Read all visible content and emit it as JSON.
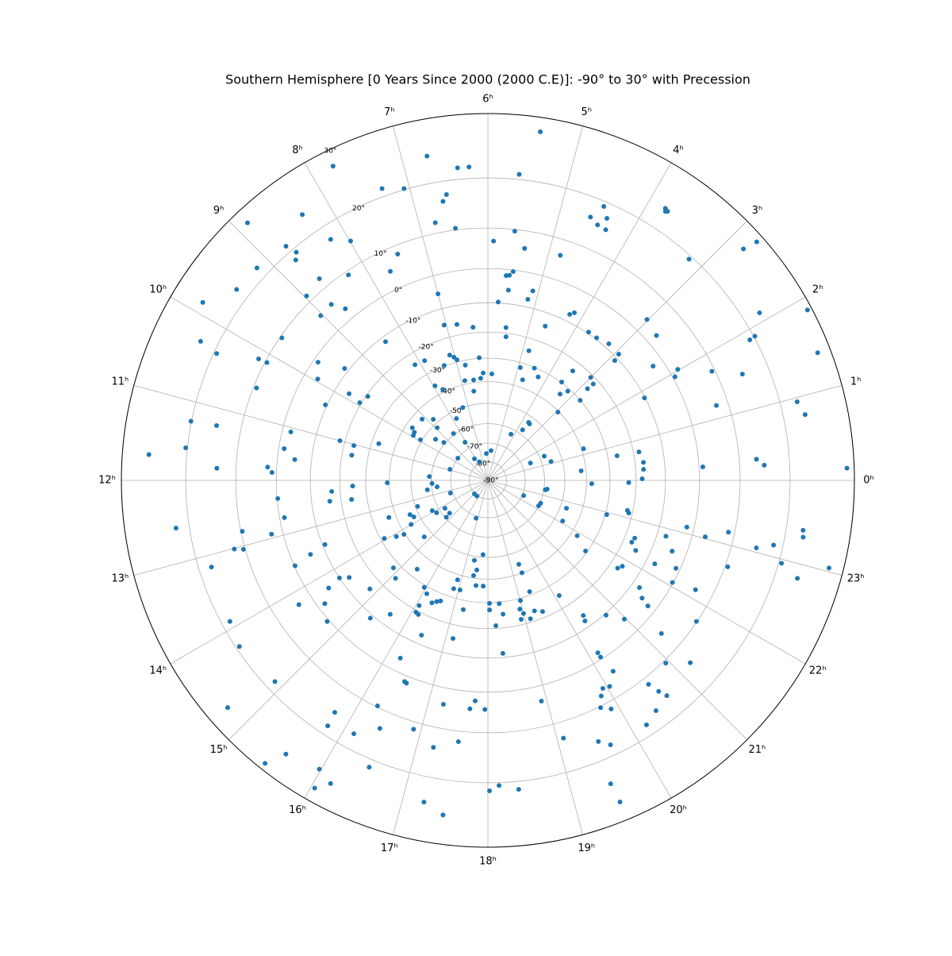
{
  "chart_data": {
    "type": "polar-scatter",
    "title": "Southern Hemisphere [0 Years Since 2000 (2000 C.E)]: -90° to 30° with Precession",
    "color": "#1f77b4",
    "grid": true,
    "xlim": [
      0,
      24
    ],
    "xticks": [
      {
        "value": 0,
        "label": "0ʰ"
      },
      {
        "value": 1,
        "label": "1ʰ"
      },
      {
        "value": 2,
        "label": "2ʰ"
      },
      {
        "value": 3,
        "label": "3ʰ"
      },
      {
        "value": 4,
        "label": "4ʰ"
      },
      {
        "value": 5,
        "label": "5ʰ"
      },
      {
        "value": 6,
        "label": "6ʰ"
      },
      {
        "value": 7,
        "label": "7ʰ"
      },
      {
        "value": 8,
        "label": "8ʰ"
      },
      {
        "value": 9,
        "label": "9ʰ"
      },
      {
        "value": 10,
        "label": "10ʰ"
      },
      {
        "value": 11,
        "label": "11ʰ"
      },
      {
        "value": 12,
        "label": "12ʰ"
      },
      {
        "value": 13,
        "label": "13ʰ"
      },
      {
        "value": 14,
        "label": "14ʰ"
      },
      {
        "value": 15,
        "label": "15ʰ"
      },
      {
        "value": 16,
        "label": "16ʰ"
      },
      {
        "value": 17,
        "label": "17ʰ"
      },
      {
        "value": 18,
        "label": "18ʰ"
      },
      {
        "value": 19,
        "label": "19ʰ"
      },
      {
        "value": 20,
        "label": "20ʰ"
      },
      {
        "value": 21,
        "label": "21ʰ"
      },
      {
        "value": 22,
        "label": "22ʰ"
      },
      {
        "value": 23,
        "label": "23ʰ"
      }
    ],
    "ylim": [
      -90,
      30
    ],
    "yticks": [
      {
        "value": -90,
        "label": "-90°"
      },
      {
        "value": -80,
        "label": "-80°"
      },
      {
        "value": -70,
        "label": "-70°"
      },
      {
        "value": -60,
        "label": "-60°"
      },
      {
        "value": -50,
        "label": "-50°"
      },
      {
        "value": -40,
        "label": "-40°"
      },
      {
        "value": -30,
        "label": "-30°"
      },
      {
        "value": -20,
        "label": "-20°"
      },
      {
        "value": -10,
        "label": "-10°"
      },
      {
        "value": 0,
        "label": "0°"
      },
      {
        "value": 10,
        "label": "10°"
      },
      {
        "value": 20,
        "label": "20°"
      },
      {
        "value": 30,
        "label": "30°"
      }
    ],
    "x": [
      5.43,
      6.71,
      6.37,
      6.23,
      7.75,
      7.33,
      7.07,
      5.61,
      6.55,
      6.61,
      6.77,
      6.49,
      8.87,
      8.33,
      8.72,
      8.67,
      8.74,
      8.21,
      7.99,
      7.45,
      7.67,
      8.28,
      8.66,
      9.16,
      9.87,
      9.52,
      8.97,
      8.78,
      8.65,
      9.03,
      7.0,
      5.91,
      5.59,
      5.4,
      5.66,
      5.6,
      5.54,
      5.78,
      5.59,
      5.17,
      5.11,
      4.81,
      4.58,
      4.45,
      4.37,
      4.32,
      4.47,
      3.79,
      3.75,
      3.77,
      3.18,
      2.81,
      2.77,
      2.11,
      1.87,
      1.88,
      1.89,
      1.41,
      1.51,
      1.73,
      1.21,
      0.95,
      0.78,
      0.3,
      0.21,
      0.13,
      0.24,
      2.71,
      3.02,
      2.02,
      1.93,
      2.31,
      1.85,
      2.93,
      2.89,
      3.23,
      3.51,
      3.72,
      4.25,
      4.18,
      4.64,
      4.83,
      3,
      2.83,
      2.84,
      2.73,
      3.48,
      3.34,
      2.95,
      3.54,
      3.21,
      4.5,
      4.27,
      4.93,
      4.73,
      3.66,
      5.86,
      6.17,
      6.27,
      6.54,
      6.87,
      6.6,
      5.55,
      5.52,
      7.05,
      6.75,
      6.37,
      7.13,
      7.03,
      6.96,
      7.39,
      6.74,
      7.86,
      8.15,
      7.95,
      7.76,
      8.43,
      9.47,
      9.87,
      9.92,
      9.67,
      9.68,
      9.95,
      10.34,
      9.69,
      10.13,
      10.14,
      10.55,
      10.33,
      10.28,
      11.25,
      11.59,
      11.24,
      11.83,
      11.71,
      11.08,
      11.41,
      11.59,
      11.77,
      11.86,
      11,
      11.03,
      11.3,
      10.76,
      9.68,
      9.79,
      9.93,
      9.93,
      9.46,
      9.29,
      9.14,
      8.79,
      8.42,
      9.57,
      8.07,
      10.91,
      7.64,
      6.22,
      5.6,
      8.13,
      4.23,
      3.7,
      3.57,
      1.55,
      1.11,
      23.38,
      23.44,
      22.44,
      1.48,
      22.47,
      22.23,
      0.39,
      23.88,
      1.22,
      0.72,
      23.94,
      0.04,
      0.27,
      0.44,
      0.71,
      22.7,
      22.1,
      21.88,
      21.61,
      22.93,
      23.19,
      23.13,
      22.57,
      22.45,
      22.31,
      21.73,
      21.83,
      22.84,
      22.6,
      22.23,
      22.33,
      22.07,
      21.65,
      21.51,
      20.97,
      21.46,
      22.15,
      23.12,
      23.03,
      23.19,
      22.68,
      23.06,
      23.15,
      22.95,
      23.4,
      23.32,
      23.04,
      22.83,
      21.73,
      21.2,
      20.95,
      21.24,
      20.65,
      20.6,
      20.55,
      20.41,
      20.2,
      20.22,
      19.93,
      19.85,
      19.76,
      20.04,
      20.17,
      20.17,
      19.89,
      19.53,
      19.66,
      19.47,
      19.49,
      19.09,
      18.91,
      20.35,
      20.31,
      20.75,
      20.12,
      19.51,
      19.31,
      19.14,
      19,
      19.35,
      19.35,
      19.37,
      19.01,
      18.93,
      18.9,
      18.43,
      18.35,
      18.05,
      18.05,
      18.21,
      18.33,
      17.57,
      17.83,
      17.43,
      17.53,
      16.87,
      17.05,
      16.83,
      17.28,
      17.17,
      17.75,
      17.36,
      16.84,
      18.38,
      18.14,
      18.02,
      17.95,
      17.78,
      17.7,
      17.25,
      17.57,
      17.23,
      17.49,
      17.25,
      16.89,
      16.25,
      16.5,
      16.54,
      16.26,
      16.43,
      16.14,
      16.5,
      15.79,
      15.77,
      16.17,
      15.98,
      16.04,
      15.57,
      15.45,
      14.89,
      14.74,
      14.25,
      13.91,
      14.75,
      14.47,
      14.27,
      14.22,
      13.59,
      13.51,
      13.43,
      14.22,
      14.33,
      14.84,
      15.3,
      15.59,
      14.85,
      15.11,
      15.43,
      16.09,
      16.17,
      16.08,
      16.45,
      15.95,
      16.11,
      16.36,
      16.47,
      16.57,
      13.75,
      13.99,
      14.18,
      13.37,
      13.95,
      14.1,
      14.15,
      13.9,
      14.2,
      14.7,
      14.77,
      13.25,
      15,
      15.67,
      14.77,
      11.75,
      12.21,
      12.48,
      12.59,
      13.35,
      13.58,
      12.16,
      12.53,
      12.27,
      12.5,
      12.09,
      12.33,
      12.69,
      12.93,
      12.78,
      13.01,
      13.05,
      12.58,
      13.16,
      8.93,
      7.8,
      7.27,
      6.27
    ],
    "values": [
      28,
      24.6,
      22,
      22,
      27.7,
      21.4,
      20.2,
      20.9,
      17.5,
      16.3,
      12.3,
      10.4,
      28,
      23.7,
      21.2,
      19.2,
      18.2,
      17.3,
      15,
      8,
      4.9,
      9.1,
      12.3,
      22,
      25.6,
      22.3,
      11.4,
      6.1,
      3,
      5.9,
      -5.3,
      7,
      9.6,
      5.9,
      -1.7,
      -1.5,
      -0.4,
      -9.7,
      -5.8,
      -7.6,
      -4.8,
      6.3,
      16.3,
      15.4,
      17.3,
      15.2,
      19.1,
      23.8,
      23.6,
      23.4,
      19.4,
      26.9,
      29,
      22.9,
      29.4,
      19.1,
      20.2,
      28.2,
      15,
      9.3,
      7.3,
      22.9,
      23.7,
      13.7,
      15.2,
      29,
      1,
      2.8,
      3.8,
      2.2,
      0.6,
      -3,
      -10.2,
      -8.7,
      -11,
      -8.5,
      -9.5,
      -9.5,
      -7.7,
      -6.6,
      -14.3,
      -24.6,
      -21,
      -22,
      -24.8,
      -30,
      -23.6,
      -34,
      -40.4,
      -29.7,
      -31,
      -30.3,
      -33,
      -32,
      -36.6,
      -53,
      -36.6,
      -36.2,
      -38.4,
      -38.8,
      -38.4,
      -43.8,
      -18,
      -21.3,
      -15.4,
      -16.2,
      -18,
      -26.5,
      -27.8,
      -29.1,
      -29.7,
      -32,
      -24.8,
      -24.3,
      -35.8,
      -38.8,
      -11.7,
      -8.7,
      -14.6,
      -19.4,
      -20.6,
      -1.3,
      -3.8,
      -9.5,
      9.6,
      9.6,
      11.6,
      9.3,
      19.5,
      22.9,
      20.1,
      20.3,
      15.2,
      14.1,
      26.2,
      -2.4,
      -1.5,
      -4.9,
      2.4,
      1.2,
      -18.2,
      -23.6,
      -23.6,
      -32.9,
      -43,
      -44.9,
      -45.3,
      -49.2,
      -55.1,
      -59.3,
      -44,
      -47.7,
      -59.3,
      -70,
      -66.3,
      -68.8,
      -79,
      -75.5,
      -73.9,
      -76.3,
      -62.6,
      -57.7,
      -53.3,
      -57.7,
      -55.4,
      -59.3,
      -58.4,
      -59.6,
      -65.5,
      -69.2,
      -60,
      -42.2,
      -37.7,
      -39.1,
      -26.3,
      -22.7,
      -17.8,
      -17.2,
      -17,
      -18,
      -47,
      -46.2,
      -37.2,
      -30.7,
      -29.4,
      -22,
      -21.3,
      -16.6,
      -17,
      -14.6,
      -17,
      -16,
      -7.2,
      -4,
      -7.2,
      -1.1,
      -0.2,
      -7.5,
      -5,
      -4.8,
      -2.3,
      5.9,
      -2,
      3.4,
      8.6,
      10.6,
      15.2,
      18.3,
      20.5,
      22.9,
      23.1,
      28,
      23.8,
      9.9,
      14.3,
      10.6,
      5.1,
      15.8,
      14.1,
      11.6,
      16.8,
      18,
      4.3,
      6.6,
      8,
      10.3,
      7,
      -2,
      -0.6,
      11.6,
      16.5,
      18,
      24.2,
      27.3,
      13.5,
      4,
      -14,
      -12.2,
      -9.5,
      -24.8,
      -22.3,
      -23.6,
      -21.3,
      -23.9,
      -44.2,
      -40.1,
      -31.4,
      -29.1,
      -25.9,
      -22,
      -25.1,
      -29.4,
      -29.7,
      -27.1,
      -21,
      -11.3,
      -36.9,
      -36.9,
      -41.1,
      -43.8,
      -37.7,
      -33.8,
      -33.6,
      -26.3,
      -15.2,
      -51.3,
      -48.1,
      -68.8,
      21.4,
      20.5,
      21.4,
      4.5,
      2.4,
      4.5,
      4.3,
      12.3,
      14.3,
      25.8,
      24.3,
      11.6,
      -3.8,
      1.6,
      1.8,
      9.7,
      13.9,
      17.1,
      21.4,
      18.3,
      15.4,
      26.4,
      25.3,
      28.1,
      26.2,
      29.1,
      18.3,
      27,
      19.4,
      18.5,
      0.6,
      -2,
      -5.5,
      3.8,
      -0.2,
      -5.5,
      -10.8,
      -10,
      -12.7,
      -15.7,
      -8.9,
      -13.9,
      -27.4,
      -25.1,
      -33.6,
      -19.3,
      -19,
      -22,
      -13,
      -29.1,
      -27.4,
      -25.1,
      -26.3,
      -27.1,
      -47.4,
      -44.6,
      -39.5,
      -36.9,
      -31.4,
      -36.2,
      -58,
      -56.7,
      -62.8,
      -63.2,
      -60.6,
      -68.8,
      -79.7,
      -79.7,
      -46.2,
      -59,
      -60.4,
      -62.8,
      -57.7,
      -51,
      -46.2,
      -24.8,
      -23.9,
      -17,
      -16,
      -39.1,
      -0.2,
      -1.3,
      3,
      9.7,
      12.3,
      10.4,
      22.3,
      17.7,
      -51.9,
      -53.7,
      -50,
      -29.7
    ]
  }
}
